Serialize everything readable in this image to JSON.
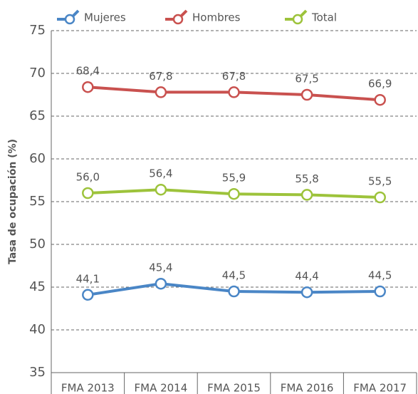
{
  "chart_data": {
    "type": "line",
    "categories": [
      "FMA 2013",
      "FMA 2014",
      "FMA 2015",
      "FMA 2016",
      "FMA 2017"
    ],
    "series": [
      {
        "name": "Mujeres",
        "color": "#4a86c6",
        "values": [
          44.1,
          45.4,
          44.5,
          44.4,
          44.5
        ],
        "value_labels": [
          "44,1",
          "45,4",
          "44,5",
          "44,4",
          "44,5"
        ]
      },
      {
        "name": "Hombres",
        "color": "#c9514f",
        "values": [
          68.4,
          67.8,
          67.8,
          67.5,
          66.9
        ],
        "value_labels": [
          "68,4",
          "67,8",
          "67,8",
          "67,5",
          "66,9"
        ]
      },
      {
        "name": "Total",
        "color": "#9dc33b",
        "values": [
          56.0,
          56.4,
          55.9,
          55.8,
          55.5
        ],
        "value_labels": [
          "56,0",
          "56,4",
          "55,9",
          "55,8",
          "55,5"
        ]
      }
    ],
    "y_label": "Tasa de ocupación (%)",
    "ylim": [
      35,
      75
    ],
    "yticks": [
      35,
      40,
      45,
      50,
      55,
      60,
      65,
      70,
      75
    ],
    "grid": true,
    "legend": "top"
  }
}
